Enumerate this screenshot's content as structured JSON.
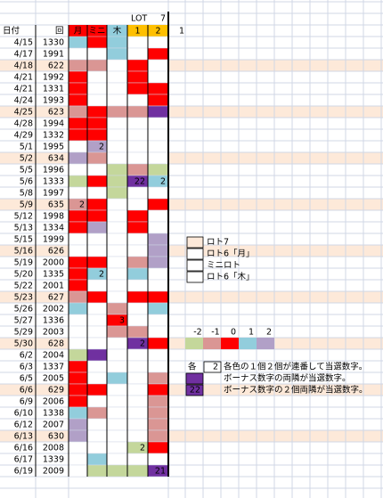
{
  "header": {
    "lot_label": "LOT",
    "lot_number": "7",
    "date": "日付",
    "round": "回",
    "columns": [
      {
        "text": "月",
        "fill": "#ff0000",
        "color": "#000000"
      },
      {
        "text": "ミニ",
        "fill": "#ff0000",
        "color": "#ccff66"
      },
      {
        "text": "木",
        "fill": "#92cddc",
        "color": "#000000"
      },
      {
        "text": "1",
        "fill": "#ffc000",
        "color": "#000000"
      },
      {
        "text": "2",
        "fill": "#ffc000",
        "color": "#000000"
      }
    ],
    "extra": "1"
  },
  "rows": [
    {
      "date": "4/15",
      "round": "1330",
      "cells": [
        {
          "fill": "#92cddc"
        },
        {
          "fill": "#ff0000"
        },
        {
          "fill": "#92cddc"
        },
        {
          "fill": "#ffffff"
        },
        {
          "fill": "#ffffff"
        }
      ]
    },
    {
      "date": "4/17",
      "round": "1991",
      "cells": [
        {
          "fill": "#ffffff"
        },
        {
          "fill": "#ffffff"
        },
        {
          "fill": "#92cddc"
        },
        {
          "fill": "#ffffff"
        },
        {
          "fill": "#ff0000"
        }
      ]
    },
    {
      "date": "4/18",
      "round": "622",
      "row_fill": "#fde9d9",
      "cells": [
        {
          "fill": "#da9694"
        },
        {
          "fill": "#da9694"
        },
        {
          "fill": "#ffffff"
        },
        {
          "fill": "#ff0000"
        },
        {
          "fill": "#ffffff"
        }
      ]
    },
    {
      "date": "4/21",
      "round": "1992",
      "cells": [
        {
          "fill": "#ff0000"
        },
        {
          "fill": "#ffffff"
        },
        {
          "fill": "#ffffff"
        },
        {
          "fill": "#ff0000"
        },
        {
          "fill": "#ffffff"
        }
      ]
    },
    {
      "date": "4/21",
      "round": "1331",
      "cells": [
        {
          "fill": "#ff0000"
        },
        {
          "fill": "#ffffff"
        },
        {
          "fill": "#ffffff"
        },
        {
          "fill": "#ff0000"
        },
        {
          "fill": "#ff0000"
        }
      ]
    },
    {
      "date": "4/24",
      "round": "1993",
      "cells": [
        {
          "fill": "#ff0000"
        },
        {
          "fill": "#ffffff"
        },
        {
          "fill": "#ffffff"
        },
        {
          "fill": "#ffffff"
        },
        {
          "fill": "#ff0000"
        }
      ]
    },
    {
      "date": "4/25",
      "round": "623",
      "row_fill": "#fde9d9",
      "cells": [
        {
          "fill": "#da9694"
        },
        {
          "fill": "#ff0000"
        },
        {
          "fill": "#da9694"
        },
        {
          "fill": "#da9694"
        },
        {
          "fill": "#7030a0"
        }
      ]
    },
    {
      "date": "4/28",
      "round": "1994",
      "cells": [
        {
          "fill": "#ff0000"
        },
        {
          "fill": "#ff0000"
        },
        {
          "fill": "#ffffff"
        },
        {
          "fill": "#ffffff"
        },
        {
          "fill": "#ffffff"
        }
      ]
    },
    {
      "date": "4/29",
      "round": "1332",
      "cells": [
        {
          "fill": "#ff0000"
        },
        {
          "fill": "#ff0000"
        },
        {
          "fill": "#ffffff"
        },
        {
          "fill": "#ffffff"
        },
        {
          "fill": "#ffffff"
        }
      ]
    },
    {
      "date": "5/1",
      "round": "1995",
      "cells": [
        {
          "fill": "#ffffff"
        },
        {
          "fill": "#b1a0c7",
          "text": "2"
        },
        {
          "fill": "#ffffff"
        },
        {
          "fill": "#ffffff"
        },
        {
          "fill": "#ffffff"
        }
      ]
    },
    {
      "date": "5/2",
      "round": "634",
      "row_fill": "#fde9d9",
      "cells": [
        {
          "fill": "#b1a0c7"
        },
        {
          "fill": "#da9694"
        },
        {
          "fill": "#ffffff"
        },
        {
          "fill": "#ffffff"
        },
        {
          "fill": "#ffffff"
        }
      ]
    },
    {
      "date": "5/5",
      "round": "1996",
      "cells": [
        {
          "fill": "#ffffff"
        },
        {
          "fill": "#ffffff"
        },
        {
          "fill": "#c4d79b"
        },
        {
          "fill": "#da9694"
        },
        {
          "fill": "#c4d79b"
        }
      ]
    },
    {
      "date": "5/6",
      "round": "1333",
      "cells": [
        {
          "fill": "#c4d79b"
        },
        {
          "fill": "#ff0000"
        },
        {
          "fill": "#c4d79b"
        },
        {
          "fill": "#7030a0",
          "text": "22"
        },
        {
          "fill": "#92cddc",
          "text": "2"
        }
      ]
    },
    {
      "date": "5/8",
      "round": "1997",
      "cells": [
        {
          "fill": "#ffffff"
        },
        {
          "fill": "#ffffff"
        },
        {
          "fill": "#c4d79b"
        },
        {
          "fill": "#ffffff"
        },
        {
          "fill": "#ffffff"
        }
      ]
    },
    {
      "date": "5/9",
      "round": "635",
      "row_fill": "#fde9d9",
      "cells": [
        {
          "fill": "#da9694",
          "text": "2"
        },
        {
          "fill": "#ff0000"
        },
        {
          "fill": "#ffffff"
        },
        {
          "fill": "#ffffff"
        },
        {
          "fill": "#ff0000"
        }
      ]
    },
    {
      "date": "5/12",
      "round": "1998",
      "cells": [
        {
          "fill": "#ff0000"
        },
        {
          "fill": "#ff0000"
        },
        {
          "fill": "#ffffff"
        },
        {
          "fill": "#ff0000"
        },
        {
          "fill": "#ffffff"
        }
      ]
    },
    {
      "date": "5/13",
      "round": "1334",
      "cells": [
        {
          "fill": "#ff0000"
        },
        {
          "fill": "#b1a0c7"
        },
        {
          "fill": "#ffffff"
        },
        {
          "fill": "#ff0000"
        },
        {
          "fill": "#ffffff"
        }
      ]
    },
    {
      "date": "5/15",
      "round": "1999",
      "cells": [
        {
          "fill": "#ffffff"
        },
        {
          "fill": "#ffffff"
        },
        {
          "fill": "#ffffff"
        },
        {
          "fill": "#ffffff"
        },
        {
          "fill": "#b1a0c7"
        }
      ]
    },
    {
      "date": "5/16",
      "round": "626",
      "row_fill": "#fde9d9",
      "cells": [
        {
          "fill": "#ffffff"
        },
        {
          "fill": "#ffffff"
        },
        {
          "fill": "#ffffff"
        },
        {
          "fill": "#ffffff"
        },
        {
          "fill": "#b1a0c7"
        }
      ]
    },
    {
      "date": "5/19",
      "round": "2000",
      "cells": [
        {
          "fill": "#ff0000"
        },
        {
          "fill": "#ff0000"
        },
        {
          "fill": "#ffffff"
        },
        {
          "fill": "#da9694"
        },
        {
          "fill": "#b1a0c7"
        }
      ]
    },
    {
      "date": "5/20",
      "round": "1335",
      "cells": [
        {
          "fill": "#ff0000"
        },
        {
          "fill": "#92cddc",
          "text": "2"
        },
        {
          "fill": "#ffffff"
        },
        {
          "fill": "#92cddc"
        },
        {
          "fill": "#ffffff"
        }
      ]
    },
    {
      "date": "5/22",
      "round": "2001",
      "cells": [
        {
          "fill": "#ff0000"
        },
        {
          "fill": "#ffffff"
        },
        {
          "fill": "#ffffff"
        },
        {
          "fill": "#ffffff"
        },
        {
          "fill": "#ffffff"
        }
      ]
    },
    {
      "date": "5/23",
      "round": "627",
      "row_fill": "#fde9d9",
      "cells": [
        {
          "fill": "#da9694"
        },
        {
          "fill": "#ff0000"
        },
        {
          "fill": "#ffffff"
        },
        {
          "fill": "#ff0000"
        },
        {
          "fill": "#ff0000"
        }
      ]
    },
    {
      "date": "5/26",
      "round": "2002",
      "cells": [
        {
          "fill": "#92cddc"
        },
        {
          "fill": "#ffffff"
        },
        {
          "fill": "#da9694"
        },
        {
          "fill": "#ffffff"
        },
        {
          "fill": "#92cddc"
        }
      ]
    },
    {
      "date": "5/27",
      "round": "1336",
      "cells": [
        {
          "fill": "#ffffff"
        },
        {
          "fill": "#ffffff"
        },
        {
          "fill": "#ff0000",
          "text": "3"
        },
        {
          "fill": "#ffffff"
        },
        {
          "fill": "#ffffff"
        }
      ]
    },
    {
      "date": "5/29",
      "round": "2003",
      "cells": [
        {
          "fill": "#ffffff"
        },
        {
          "fill": "#ffffff"
        },
        {
          "fill": "#da9694"
        },
        {
          "fill": "#da9694"
        },
        {
          "fill": "#ffffff"
        }
      ]
    },
    {
      "date": "5/30",
      "round": "628",
      "row_fill": "#fde9d9",
      "cells": [
        {
          "fill": "#ffffff"
        },
        {
          "fill": "#ffffff"
        },
        {
          "fill": "#ffffff"
        },
        {
          "fill": "#7030a0",
          "text": "2"
        },
        {
          "fill": "#ff0000"
        }
      ]
    },
    {
      "date": "6/2",
      "round": "2004",
      "cells": [
        {
          "fill": "#c4d79b"
        },
        {
          "fill": "#7030a0"
        },
        {
          "fill": "#ffffff"
        },
        {
          "fill": "#ffffff"
        },
        {
          "fill": "#ffffff"
        }
      ]
    },
    {
      "date": "6/3",
      "round": "1337",
      "cells": [
        {
          "fill": "#ff0000"
        },
        {
          "fill": "#ffffff"
        },
        {
          "fill": "#ffffff"
        },
        {
          "fill": "#ffffff"
        },
        {
          "fill": "#ffffff"
        }
      ]
    },
    {
      "date": "6/5",
      "round": "2005",
      "cells": [
        {
          "fill": "#ff0000"
        },
        {
          "fill": "#ffffff"
        },
        {
          "fill": "#92cddc"
        },
        {
          "fill": "#ffffff"
        },
        {
          "fill": "#da9694"
        }
      ]
    },
    {
      "date": "6/6",
      "round": "629",
      "row_fill": "#fde9d9",
      "cells": [
        {
          "fill": "#ff0000"
        },
        {
          "fill": "#ff0000"
        },
        {
          "fill": "#ffffff"
        },
        {
          "fill": "#ffffff"
        },
        {
          "fill": "#ff0000"
        }
      ]
    },
    {
      "date": "6/9",
      "round": "2006",
      "cells": [
        {
          "fill": "#ff0000"
        },
        {
          "fill": "#ffffff"
        },
        {
          "fill": "#ffffff"
        },
        {
          "fill": "#ffffff"
        },
        {
          "fill": "#da9694"
        }
      ]
    },
    {
      "date": "6/10",
      "round": "1338",
      "cells": [
        {
          "fill": "#92cddc"
        },
        {
          "fill": "#da9694"
        },
        {
          "fill": "#ffffff"
        },
        {
          "fill": "#ffffff"
        },
        {
          "fill": "#da9694"
        }
      ]
    },
    {
      "date": "6/12",
      "round": "2007",
      "cells": [
        {
          "fill": "#b1a0c7"
        },
        {
          "fill": "#ffffff"
        },
        {
          "fill": "#ffffff"
        },
        {
          "fill": "#ffffff"
        },
        {
          "fill": "#da9694"
        }
      ]
    },
    {
      "date": "6/13",
      "round": "630",
      "row_fill": "#fde9d9",
      "cells": [
        {
          "fill": "#b1a0c7"
        },
        {
          "fill": "#ffffff"
        },
        {
          "fill": "#ffffff"
        },
        {
          "fill": "#ffffff"
        },
        {
          "fill": "#da9694"
        }
      ]
    },
    {
      "date": "6/16",
      "round": "2008",
      "cells": [
        {
          "fill": "#ffffff"
        },
        {
          "fill": "#ffffff"
        },
        {
          "fill": "#ffffff"
        },
        {
          "fill": "#c4d79b",
          "text": "2"
        },
        {
          "fill": "#ff0000"
        }
      ]
    },
    {
      "date": "6/17",
      "round": "1339",
      "cells": [
        {
          "fill": "#ffffff"
        },
        {
          "fill": "#92cddc"
        },
        {
          "fill": "#ffffff"
        },
        {
          "fill": "#ffffff"
        },
        {
          "fill": "#ffffff"
        }
      ]
    },
    {
      "date": "6/19",
      "round": "2009",
      "cells": [
        {
          "fill": "#ffffff"
        },
        {
          "fill": "#c4d79b"
        },
        {
          "fill": "#c4d79b"
        },
        {
          "fill": "#c4d79b"
        },
        {
          "fill": "#7030a0",
          "text": "21"
        }
      ]
    }
  ],
  "legend": [
    {
      "fill": "#fde9d9",
      "label": "ロト7"
    },
    {
      "fill": "#ffffff",
      "label": "ロト6「月」"
    },
    {
      "fill": "#ffffff",
      "label": "ミニロト"
    },
    {
      "fill": "#ffffff",
      "label": "ロト6「木」"
    }
  ],
  "scale": [
    {
      "label": "-2",
      "fill": "#c4d79b"
    },
    {
      "label": "-1",
      "fill": "#da9694"
    },
    {
      "label": "0",
      "fill": "#ff0000"
    },
    {
      "label": "1",
      "fill": "#92cddc"
    },
    {
      "label": "2",
      "fill": "#b1a0c7"
    }
  ],
  "notes": [
    {
      "marker": "各",
      "box_text": "2",
      "fill": "#ffffff",
      "text": "各色の１個２個が連番して当選数字。"
    },
    {
      "fill": "#7030a0",
      "text": "ボーナス数字の両隣が当選数字。"
    },
    {
      "fill": "#7030a0",
      "box_text": "22",
      "text": "ボーナス数字の２個両隣が当選数字。"
    }
  ]
}
